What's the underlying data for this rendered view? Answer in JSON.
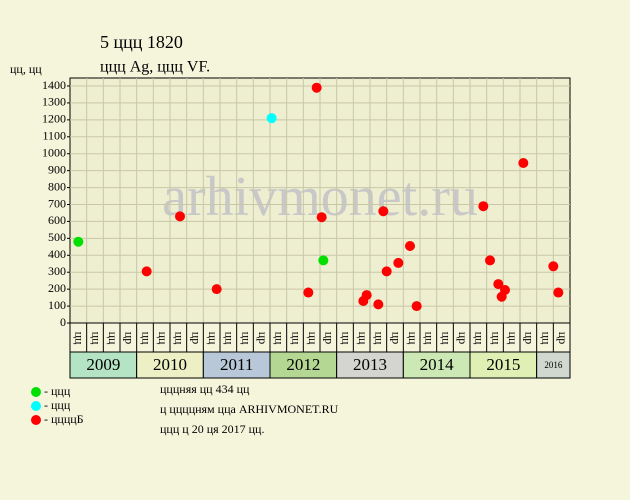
{
  "chart_data": {
    "type": "scatter",
    "title": "5 ццц 1820",
    "subtitle": "ццц Ag, ццц VF.",
    "y_label": "цц, цц",
    "watermark": "arhivmonet.ru",
    "ylim": [
      0,
      1400
    ],
    "yticks": [
      0,
      100,
      200,
      300,
      400,
      500,
      600,
      700,
      800,
      900,
      1000,
      1100,
      1200,
      1300,
      1400
    ],
    "grid": true,
    "xlim": [
      0,
      30
    ],
    "period_labels": [
      "цц",
      "цц",
      "цц",
      "цр",
      "цц",
      "цц",
      "цц",
      "цр",
      "цц",
      "цц",
      "цц",
      "цр",
      "цц",
      "цц",
      "цц",
      "цр",
      "цц",
      "цц",
      "цц",
      "цр",
      "цц",
      "цц",
      "цц",
      "цр",
      "цц",
      "цц",
      "цц",
      "цр",
      "цц",
      "цр"
    ],
    "years": [
      {
        "label": "2009",
        "color": "#b4e4c4"
      },
      {
        "label": "2010",
        "color": "#ecf0c4"
      },
      {
        "label": "2011",
        "color": "#b8c8d8"
      },
      {
        "label": "2012",
        "color": "#b4d894"
      },
      {
        "label": "2013",
        "color": "#d4d4d0"
      },
      {
        "label": "2014",
        "color": "#cce8b4"
      },
      {
        "label": "2015",
        "color": "#e0f0b4"
      },
      {
        "label": "2016",
        "color": "#d0d8d0"
      }
    ],
    "series": [
      {
        "name": "- ццц",
        "color": "#00e000",
        "x": [
          0.5,
          15.2
        ],
        "values": [
          480,
          370
        ]
      },
      {
        "name": "- ццц",
        "color": "#00ffff",
        "x": [
          12.1
        ],
        "values": [
          1210
        ]
      },
      {
        "name": "- ццццБ",
        "color": "#ff0000",
        "x": [
          4.6,
          6.6,
          8.8,
          14.3,
          14.8,
          15.1,
          17.6,
          17.8,
          18.5,
          18.8,
          19.0,
          19.7,
          20.4,
          20.8,
          24.8,
          25.2,
          25.7,
          25.9,
          26.1,
          27.2,
          29.0,
          29.3
        ],
        "values": [
          305,
          630,
          200,
          180,
          1390,
          625,
          130,
          165,
          110,
          660,
          305,
          355,
          455,
          100,
          690,
          370,
          230,
          155,
          195,
          945,
          335,
          180
        ]
      }
    ],
    "notes": [
      "цццняя цц 434 цц",
      "ц ццццням цца ARHIVMONET.RU",
      "ццц ц 20 ця 2017 цц."
    ]
  }
}
